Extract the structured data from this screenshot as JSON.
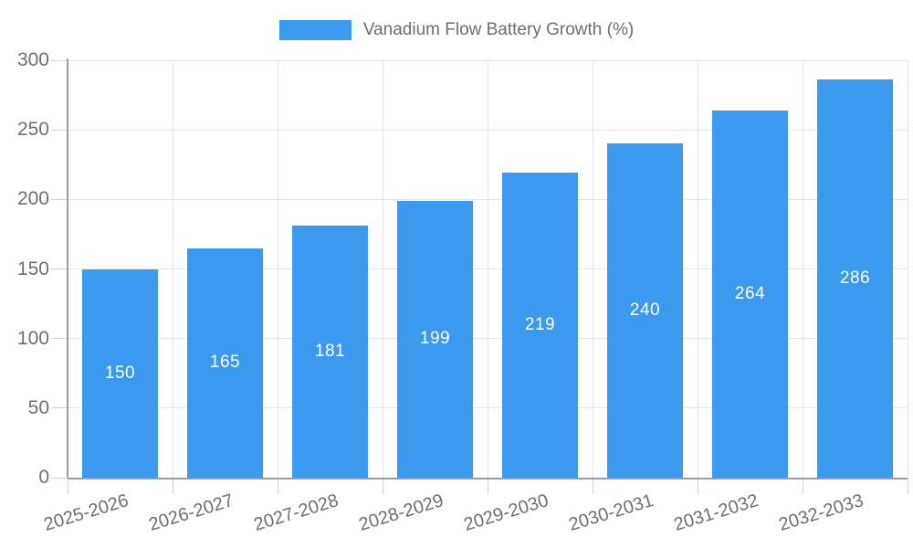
{
  "legend": {
    "label": "Vanadium Flow Battery Growth (%)"
  },
  "colors": {
    "bar": "#3b99ee",
    "bar_value_text": "#ffffff",
    "axis_line": "#9d9d9d",
    "gridline": "#e6e6e6",
    "tick_mark": "#d4d4d4",
    "label_text": "#6f6f6f"
  },
  "chart_data": {
    "type": "bar",
    "title": "",
    "series_name": "Vanadium Flow Battery Growth (%)",
    "categories": [
      "2025-2026",
      "2026-2027",
      "2027-2028",
      "2028-2029",
      "2029-2030",
      "2030-2031",
      "2031-2032",
      "2032-2033"
    ],
    "values": [
      150,
      165,
      181,
      199,
      219,
      240,
      264,
      286
    ],
    "value_labels": [
      "150",
      "165",
      "181",
      "199",
      "219",
      "240",
      "264",
      "286"
    ],
    "value_label_position": "inside-center",
    "xlabel": "",
    "ylabel": "",
    "ylim": [
      0,
      300
    ],
    "yticks": [
      0,
      50,
      100,
      150,
      200,
      250,
      300
    ],
    "ytick_labels": [
      "0",
      "50",
      "100",
      "150",
      "200",
      "250",
      "300"
    ],
    "grid": true,
    "grid_vertical": true,
    "legend_position": "top-center",
    "x_label_rotation_deg": -17
  }
}
